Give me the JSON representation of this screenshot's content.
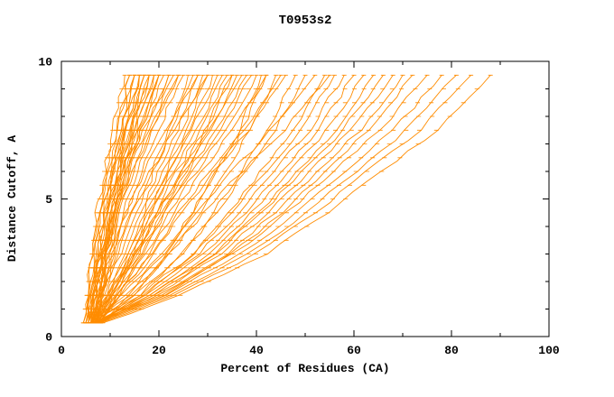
{
  "chart_data": {
    "type": "line",
    "title": "T0953s2",
    "xlabel": "Percent of Residues (CA)",
    "ylabel": "Distance Cutoff, A",
    "xlim": [
      0,
      100
    ],
    "ylim": [
      0,
      10
    ],
    "x_ticks": [
      "0",
      "20",
      "40",
      "60",
      "80",
      "100"
    ],
    "x_tick_values": [
      0,
      20,
      40,
      60,
      80,
      100
    ],
    "x_minor_step": 10,
    "y_ticks": [
      "0",
      "5",
      "10"
    ],
    "y_tick_values": [
      0,
      5,
      10
    ],
    "y_minor_step": 1,
    "line_color": "#FF8C00",
    "frame_color": "#000000",
    "legend": "none",
    "grid": false,
    "y_levels": [
      0.5,
      1.5,
      3,
      4.5,
      6,
      7.5,
      9.5
    ],
    "series": [
      [
        4.5,
        5.2,
        6.2,
        7.3,
        8.8,
        10.5,
        13
      ],
      [
        5,
        5.7,
        6.8,
        8,
        9.5,
        11.3,
        14
      ],
      [
        5.5,
        6.3,
        7.4,
        8.6,
        10.3,
        12.2,
        15
      ],
      [
        6,
        6.7,
        7.8,
        9,
        10.5,
        12.3,
        15
      ],
      [
        6.5,
        7.3,
        8.4,
        9.6,
        11.3,
        13.2,
        16
      ],
      [
        7,
        7.7,
        8.8,
        10,
        11.5,
        13.3,
        16
      ],
      [
        7.5,
        8.3,
        9.4,
        10.6,
        12.3,
        14.2,
        17
      ],
      [
        5,
        6,
        7.4,
        9,
        11,
        13.4,
        17
      ],
      [
        5.5,
        6.5,
        8,
        9.6,
        11.8,
        14.3,
        18
      ],
      [
        6,
        7,
        8.4,
        10,
        12,
        14.4,
        18
      ],
      [
        6.5,
        7.5,
        9,
        10.6,
        12.8,
        15.3,
        19
      ],
      [
        7,
        8,
        9.4,
        11,
        13,
        15.4,
        19
      ],
      [
        7.5,
        8.5,
        10,
        11.6,
        13.8,
        16.3,
        20
      ],
      [
        5,
        6.2,
        8,
        10,
        12.5,
        15.5,
        20
      ],
      [
        5.5,
        6.7,
        8.6,
        10.6,
        13.3,
        16.4,
        21
      ],
      [
        6,
        7.3,
        9.2,
        11.3,
        14,
        17.2,
        22
      ],
      [
        6.5,
        7.8,
        9.8,
        11.9,
        14.8,
        18.1,
        23
      ],
      [
        7,
        8.4,
        10.4,
        12.6,
        15.5,
        18.9,
        24
      ],
      [
        7.5,
        8.9,
        11,
        13.3,
        16.3,
        19.8,
        25
      ],
      [
        5.5,
        8,
        11.7,
        14.7,
        18.2,
        21.9,
        26
      ],
      [
        6,
        8.5,
        12.3,
        15.5,
        19,
        22.8,
        27
      ],
      [
        6.5,
        9.1,
        13,
        16.2,
        19.8,
        23.7,
        28
      ],
      [
        7,
        9.6,
        13.6,
        16.9,
        20.6,
        24.6,
        29
      ],
      [
        7.5,
        10.2,
        14.3,
        17.6,
        21.5,
        25.5,
        30
      ],
      [
        8,
        10.8,
        14.9,
        18.4,
        22.3,
        26.4,
        31
      ],
      [
        6,
        9.1,
        13.8,
        17.7,
        22.1,
        26.8,
        32
      ],
      [
        6.5,
        9.7,
        14.5,
        18.4,
        22.9,
        27.7,
        33
      ],
      [
        7,
        10.2,
        15.1,
        19.2,
        23.7,
        28.6,
        34
      ],
      [
        7.5,
        10.8,
        15.8,
        19.9,
        24.6,
        29.5,
        35
      ],
      [
        8,
        11.4,
        16.4,
        20.6,
        25.4,
        30.4,
        36
      ],
      [
        6,
        9.7,
        15.3,
        20,
        25.2,
        30.8,
        37
      ],
      [
        6.5,
        10.3,
        16,
        20.7,
        26,
        31.7,
        38
      ],
      [
        7,
        10.8,
        16.6,
        21.4,
        26.8,
        32.6,
        39
      ],
      [
        7.5,
        11.4,
        17.3,
        22.1,
        27.7,
        33.5,
        40
      ],
      [
        8,
        14.6,
        21.9,
        27.1,
        31.8,
        36.4,
        41
      ],
      [
        6,
        13.2,
        21.1,
        26.9,
        31.9,
        37,
        42
      ],
      [
        6.5,
        14,
        22.3,
        28.3,
        33.5,
        38.8,
        44
      ],
      [
        7,
        11.6,
        18.4,
        24.1,
        30.6,
        37.4,
        45
      ],
      [
        7.5,
        12.1,
        19.1,
        24.8,
        31.4,
        38.3,
        46
      ],
      [
        8,
        16,
        24.8,
        31.2,
        36.8,
        42.4,
        48
      ],
      [
        6.5,
        15.2,
        24.8,
        31.7,
        37.8,
        43.9,
        50
      ],
      [
        7,
        12.4,
        20.5,
        27.3,
        34.9,
        43,
        52
      ],
      [
        7.5,
        16.8,
        27,
        34.5,
        41,
        47.5,
        54
      ],
      [
        8,
        13.6,
        22.1,
        29.2,
        37.1,
        45.6,
        55
      ],
      [
        6,
        16,
        27,
        35,
        42,
        49,
        56
      ],
      [
        6.5,
        16.8,
        28.1,
        36.4,
        43.6,
        50.8,
        58
      ],
      [
        7,
        17.6,
        29.3,
        37.7,
        45.2,
        52.6,
        60
      ],
      [
        7.5,
        18.4,
        30.4,
        39.1,
        46.7,
        54.4,
        62
      ],
      [
        8,
        19.2,
        31.5,
        40.5,
        48.3,
        56.2,
        64
      ],
      [
        6.5,
        18.4,
        31.5,
        41,
        49.3,
        57.7,
        66
      ],
      [
        7,
        19.2,
        32.6,
        42.4,
        50.9,
        59.5,
        68
      ],
      [
        7.5,
        20,
        33.8,
        43.8,
        52.5,
        61.3,
        70
      ],
      [
        8,
        20.8,
        34.9,
        45.1,
        54.1,
        63,
        72
      ],
      [
        6.5,
        20.2,
        35.3,
        46.2,
        55.8,
        65.4,
        75
      ],
      [
        7,
        21.2,
        36.8,
        48.2,
        58.1,
        68.1,
        78
      ],
      [
        7.5,
        22.2,
        38.4,
        50.1,
        60.4,
        70.7,
        81
      ],
      [
        8,
        23.2,
        39.9,
        52.1,
        62.7,
        73.4,
        84
      ],
      [
        8.5,
        24.4,
        41.9,
        54.6,
        65.7,
        76.9,
        88
      ],
      [
        4.5,
        5.3,
        6.4,
        7.6,
        9.3,
        11.2,
        14
      ],
      [
        5,
        5.8,
        7,
        8.3,
        10,
        12,
        15
      ],
      [
        5.5,
        6.3,
        7.6,
        9,
        10.8,
        12.9,
        16
      ],
      [
        6,
        6.9,
        8.2,
        9.6,
        11.5,
        13.7,
        17
      ],
      [
        6.5,
        7.4,
        8.8,
        10.3,
        12.3,
        14.6,
        18
      ],
      [
        7,
        8,
        9.6,
        11.3,
        13.5,
        16.1,
        20
      ],
      [
        5,
        6.4,
        8.4,
        10.6,
        13.5,
        16.9,
        22
      ],
      [
        5.5,
        7,
        9.2,
        11.6,
        14.8,
        18.5,
        24
      ],
      [
        6,
        7.8,
        10.4,
        13.3,
        17,
        21.4,
        28
      ],
      [
        6.5,
        8.4,
        11.2,
        14.3,
        18.3,
        23,
        30
      ],
      [
        7,
        10.4,
        15.4,
        19.6,
        24.4,
        29.4,
        35
      ],
      [
        7.5,
        11.6,
        17.9,
        23,
        28.9,
        35.1,
        42
      ]
    ]
  }
}
